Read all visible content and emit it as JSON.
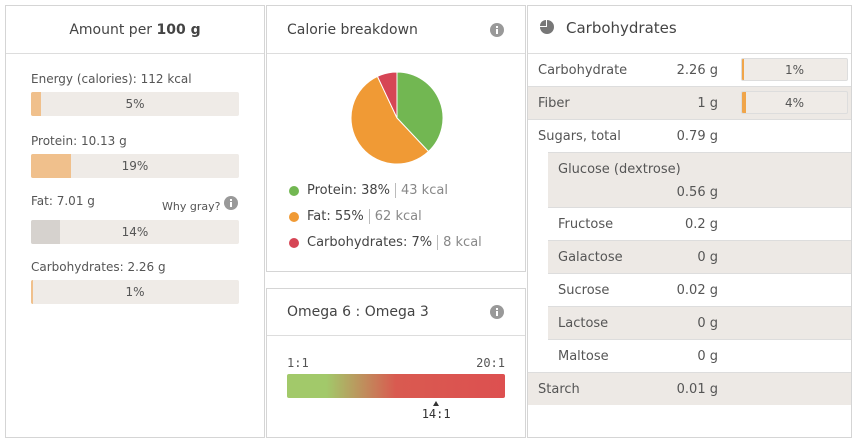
{
  "nutrition_panel": {
    "title": "Amount per",
    "amount": "100 g",
    "note": "Why gray?",
    "rows": [
      {
        "label": "Energy (calories):",
        "value": "112 kcal",
        "percent": 5,
        "percent_label": "5%",
        "color": "#f0c08c"
      },
      {
        "label": "Protein:",
        "value": "10.13 g",
        "percent": 19,
        "percent_label": "19%",
        "color": "#f0c08c"
      },
      {
        "label": "Fat:",
        "value": "7.01 g",
        "percent": 14,
        "percent_label": "14%",
        "color": "#d6d2ce"
      },
      {
        "label": "Carbohydrates:",
        "value": "2.26 g",
        "percent": 1,
        "percent_label": "1%",
        "color": "#f0c08c"
      }
    ]
  },
  "calorie_panel": {
    "title": "Calorie breakdown",
    "slices": [
      {
        "label": "Protein:",
        "percent": 38,
        "percent_label": "38%",
        "kcal": "43 kcal",
        "color": "#72b752"
      },
      {
        "label": "Fat:",
        "percent": 55,
        "percent_label": "55%",
        "kcal": "62 kcal",
        "color": "#f09a35"
      },
      {
        "label": "Carbohydrates:",
        "percent": 7,
        "percent_label": "7%",
        "kcal": "8 kcal",
        "color": "#d64555"
      }
    ]
  },
  "omega_panel": {
    "title": "Omega 6 : Omega 3",
    "scale_min": 1,
    "scale_max": 20,
    "ratio": 14,
    "min_label": "1:1",
    "max_label": "20:1",
    "ratio_label": "14:1"
  },
  "carbs_panel": {
    "title": "Carbohydrates",
    "rows": [
      {
        "label": "Carbohydrate",
        "value": "2.26 g",
        "percent": 1,
        "percent_label": "1%"
      },
      {
        "label": "Fiber",
        "value": "1 g",
        "percent": 4,
        "percent_label": "4%"
      },
      {
        "label": "Sugars, total",
        "value": "0.79 g"
      },
      {
        "label": "Glucose (dextrose)",
        "value": "0.56 g",
        "sub": true
      },
      {
        "label": "Fructose",
        "value": "0.2 g",
        "sub": true
      },
      {
        "label": "Galactose",
        "value": "0 g",
        "sub": true
      },
      {
        "label": "Sucrose",
        "value": "0.02 g",
        "sub": true
      },
      {
        "label": "Lactose",
        "value": "0 g",
        "sub": true
      },
      {
        "label": "Maltose",
        "value": "0 g",
        "sub": true
      },
      {
        "label": "Starch",
        "value": "0.01 g"
      }
    ]
  }
}
